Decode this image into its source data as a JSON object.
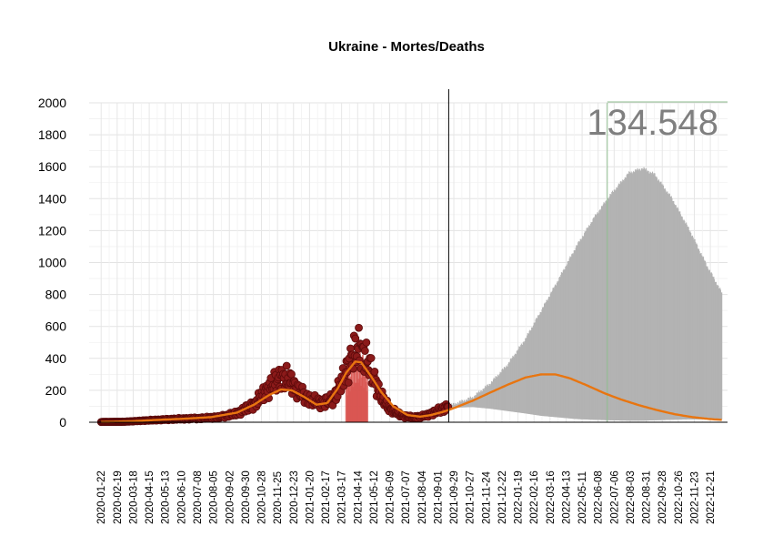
{
  "chart_data": {
    "type": "line",
    "title": "Ukraine - Mortes/Deaths",
    "xlabel": "",
    "ylabel": "",
    "ylim": [
      0,
      2000
    ],
    "xlim": [
      "2020-01-01",
      "2023-01-20"
    ],
    "yticks": [
      0,
      200,
      400,
      600,
      800,
      1000,
      1200,
      1400,
      1600,
      1800,
      2000
    ],
    "grid": true,
    "forecast_start": "2021-09-20",
    "marker_date": "2022-06-24",
    "total_deaths_label": "134.548",
    "xtick_labels": [
      "2020-01-22",
      "2020-02-19",
      "2020-03-18",
      "2020-04-15",
      "2020-05-13",
      "2020-06-10",
      "2020-07-08",
      "2020-08-05",
      "2020-09-02",
      "2020-09-30",
      "2020-10-28",
      "2020-11-25",
      "2020-12-23",
      "2021-01-20",
      "2021-02-17",
      "2021-03-17",
      "2021-04-14",
      "2021-05-12",
      "2021-06-09",
      "2021-07-07",
      "2021-08-04",
      "2021-09-01",
      "2021-09-29",
      "2021-10-27",
      "2021-11-24",
      "2021-12-22",
      "2022-01-19",
      "2022-02-16",
      "2022-03-16",
      "2022-04-13",
      "2022-05-11",
      "2022-06-08",
      "2022-07-06",
      "2022-08-03",
      "2022-08-31",
      "2022-09-28",
      "2022-10-26",
      "2022-11-23",
      "2022-12-21"
    ],
    "colors": {
      "observed_points": "#8b1a1a",
      "observed_points_edge": "#5a0a0a",
      "daily_bars": "#d9534f",
      "trend_line": "#e87510",
      "forecast_band": "#b3b3b3",
      "marker_line": "#8fbc8f"
    },
    "series": [
      {
        "type": "points",
        "x": [
          "2020-01-22",
          "2020-03-01",
          "2020-04-15",
          "2020-06-01",
          "2020-07-15",
          "2020-08-15",
          "2020-09-15",
          "2020-10-15",
          "2020-11-01",
          "2020-11-20",
          "2020-12-01",
          "2020-12-15",
          "2021-01-01",
          "2021-01-20",
          "2021-02-10",
          "2021-03-01",
          "2021-03-20",
          "2021-04-05",
          "2021-04-15",
          "2021-04-25",
          "2021-05-10",
          "2021-05-25",
          "2021-06-10",
          "2021-07-01",
          "2021-07-20",
          "2021-08-10",
          "2021-09-01",
          "2021-09-20"
        ],
        "y": [
          2,
          3,
          12,
          20,
          25,
          32,
          55,
          110,
          180,
          250,
          280,
          270,
          190,
          140,
          120,
          140,
          270,
          420,
          470,
          430,
          300,
          160,
          80,
          40,
          30,
          40,
          70,
          100
        ]
      },
      {
        "type": "line",
        "x": [
          "2020-01-22",
          "2020-03-15",
          "2020-05-01",
          "2020-06-15",
          "2020-08-01",
          "2020-09-15",
          "2020-10-15",
          "2020-11-10",
          "2020-12-01",
          "2020-12-20",
          "2021-01-10",
          "2021-02-01",
          "2021-02-20",
          "2021-03-10",
          "2021-03-25",
          "2021-04-10",
          "2021-04-20",
          "2021-05-05",
          "2021-05-25",
          "2021-06-15",
          "2021-07-10",
          "2021-08-01",
          "2021-08-20",
          "2021-09-10",
          "2021-09-30",
          "2021-11-01",
          "2021-12-01",
          "2022-01-01",
          "2022-02-01",
          "2022-03-01",
          "2022-03-25",
          "2022-04-20",
          "2022-05-20",
          "2022-06-20",
          "2022-07-20",
          "2022-08-20",
          "2022-09-20",
          "2022-10-20",
          "2022-11-20",
          "2022-12-20",
          "2023-01-10"
        ],
        "y": [
          2,
          6,
          15,
          22,
          32,
          60,
          110,
          170,
          205,
          200,
          160,
          110,
          120,
          210,
          310,
          380,
          375,
          300,
          190,
          100,
          45,
          35,
          45,
          65,
          90,
          135,
          185,
          235,
          280,
          300,
          300,
          275,
          230,
          180,
          140,
          105,
          75,
          50,
          32,
          20,
          15
        ]
      },
      {
        "type": "band",
        "x": [
          "2021-09-20",
          "2021-11-01",
          "2021-12-01",
          "2022-01-01",
          "2022-02-01",
          "2022-03-01",
          "2022-04-01",
          "2022-05-01",
          "2022-06-01",
          "2022-07-01",
          "2022-08-01",
          "2022-08-25",
          "2022-09-15",
          "2022-10-15",
          "2022-11-15",
          "2022-12-15",
          "2023-01-10"
        ],
        "lower": [
          90,
          95,
          85,
          70,
          55,
          40,
          30,
          20,
          15,
          12,
          10,
          10,
          12,
          15,
          18,
          18,
          18
        ],
        "upper": [
          100,
          155,
          240,
          360,
          520,
          700,
          900,
          1100,
          1280,
          1430,
          1560,
          1590,
          1550,
          1400,
          1200,
          980,
          810
        ]
      }
    ]
  }
}
